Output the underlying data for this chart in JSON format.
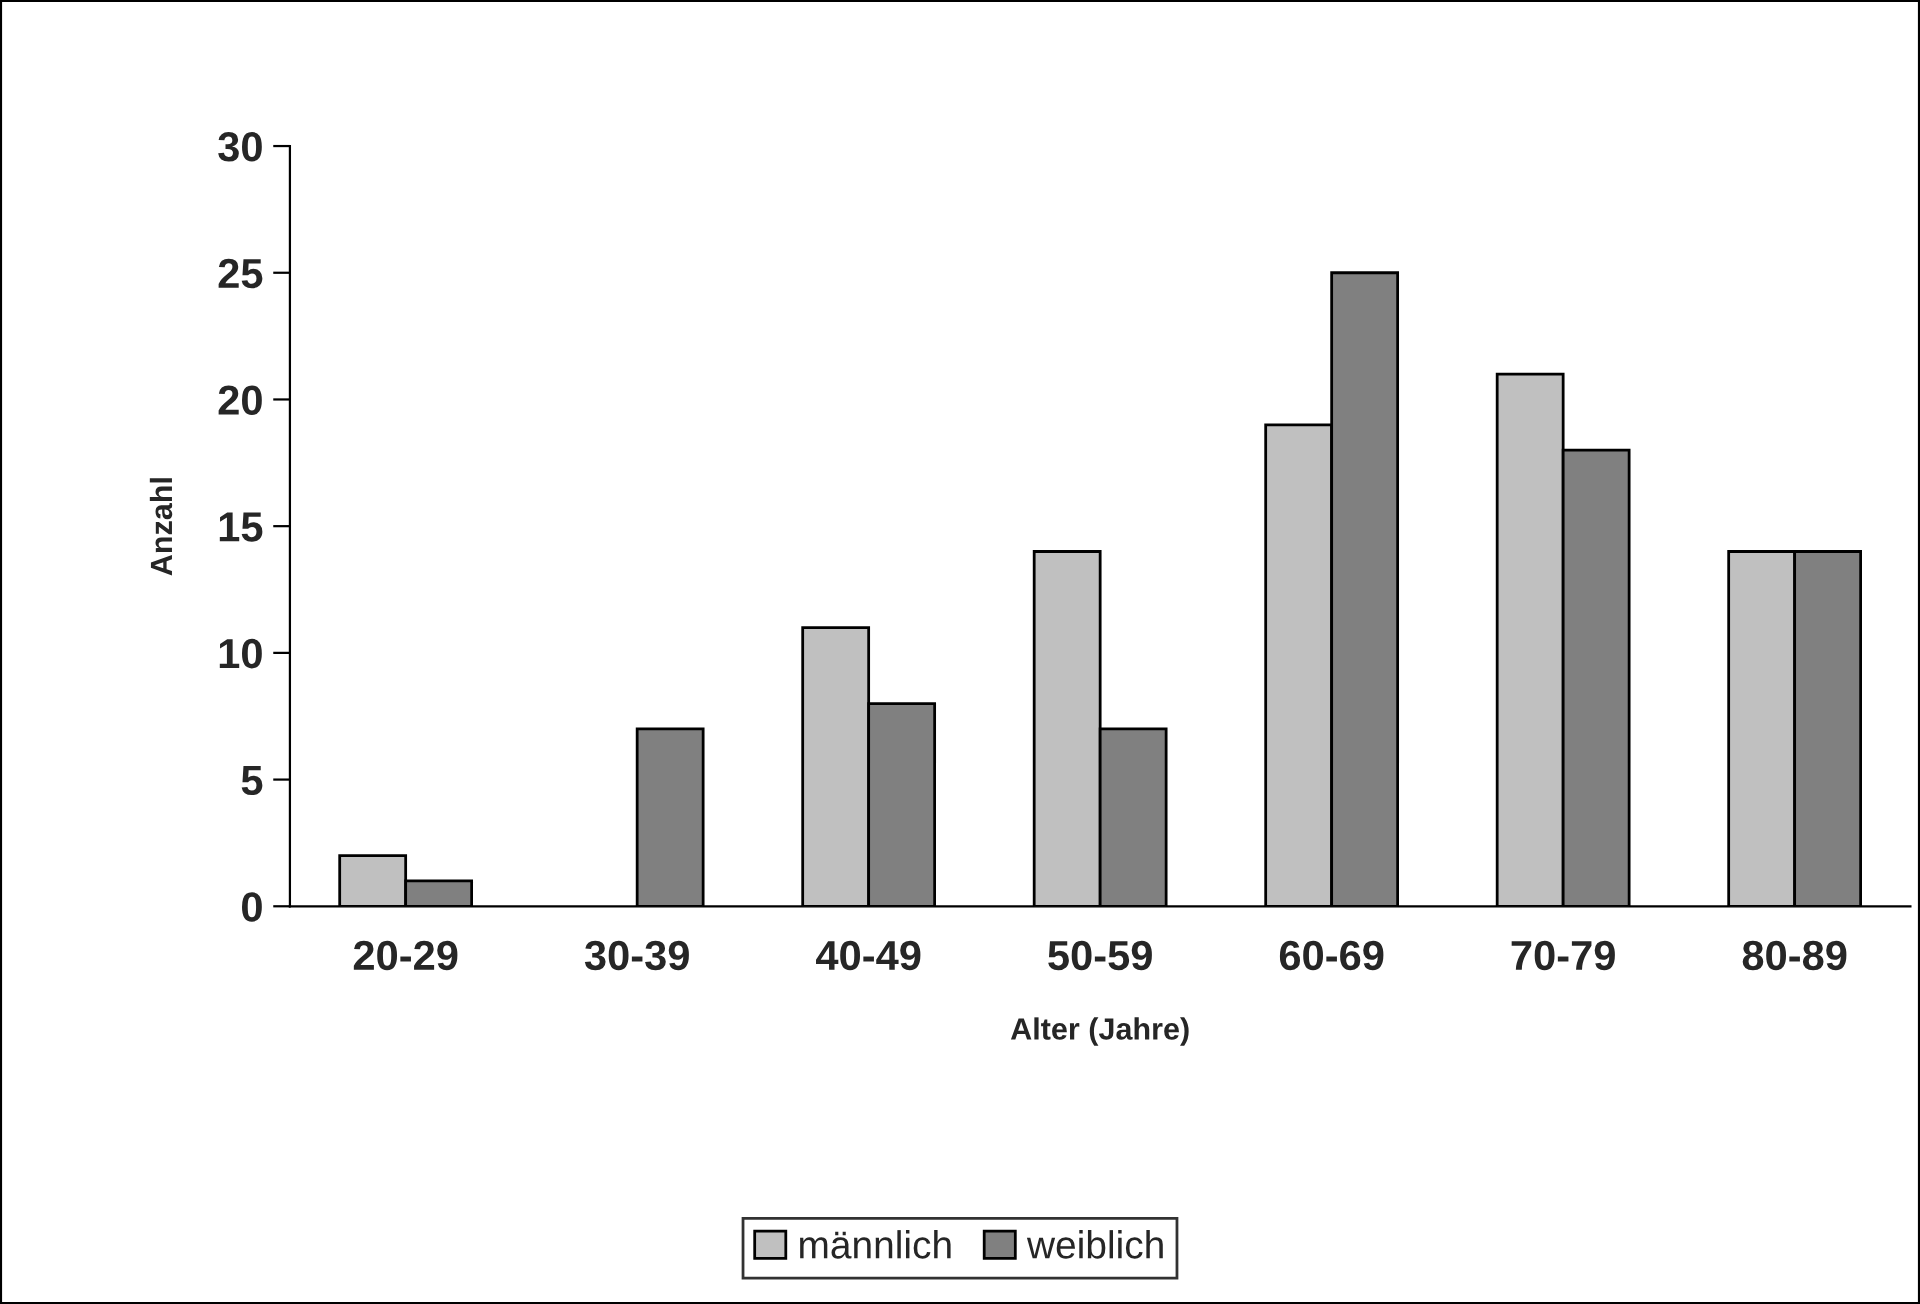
{
  "chart_data": {
    "type": "bar",
    "xlabel": "Alter (Jahre)",
    "ylabel": "Anzahl",
    "categories": [
      "20-29",
      "30-39",
      "40-49",
      "50-59",
      "60-69",
      "70-79",
      "80-89"
    ],
    "series": [
      {
        "name": "männlich",
        "color": "#c0c0c0",
        "values": [
          2,
          0,
          11,
          14,
          19,
          21,
          14
        ]
      },
      {
        "name": "weiblich",
        "color": "#808080",
        "values": [
          1,
          7,
          8,
          7,
          25,
          18,
          14
        ]
      }
    ],
    "ylim": [
      0,
      30
    ],
    "yticks": [
      0,
      5,
      10,
      15,
      20,
      25,
      30
    ],
    "legend": "bottom"
  }
}
